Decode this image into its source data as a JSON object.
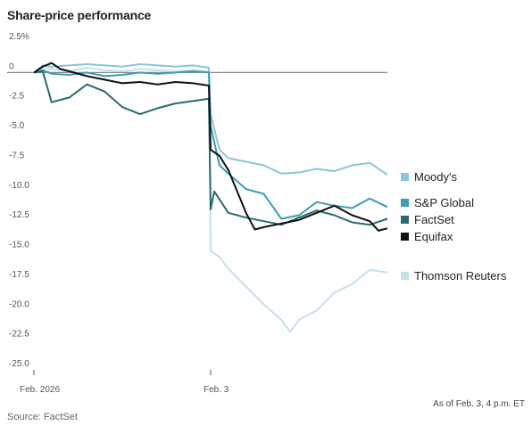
{
  "header": {
    "title": "Share-price performance"
  },
  "footer": {
    "note": "As of Feb. 3, 4 p.m. ET",
    "source": "Source: FactSet"
  },
  "chart_data": {
    "type": "line",
    "title": "Share-price performance",
    "xlabel": "",
    "ylabel": "",
    "ylim": [
      -25,
      2.5
    ],
    "y_ticks": [
      2.5,
      0,
      -2.5,
      -5,
      -7.5,
      -10,
      -12.5,
      -15,
      -17.5,
      -20,
      -22.5,
      -25
    ],
    "y_tick_labels": [
      "2.5%",
      "0",
      "-2.5",
      "-5.0",
      "-7.5",
      "-10.0",
      "-12.5",
      "-15.0",
      "-17.5",
      "-20.0",
      "-22.5",
      "-25.0"
    ],
    "x_ticks": [
      {
        "label": "Feb. 2026",
        "x": 0
      },
      {
        "label": "Feb. 3",
        "x": 1
      }
    ],
    "xlim": [
      0,
      2
    ],
    "grid": false,
    "zero_line": true,
    "legend_position": "right",
    "series": [
      {
        "name": "Moody's",
        "color": "#8ec5d6",
        "x": [
          0,
          0.05,
          0.1,
          0.2,
          0.3,
          0.4,
          0.5,
          0.6,
          0.7,
          0.8,
          0.9,
          0.99,
          1.0,
          1.05,
          1.1,
          1.2,
          1.3,
          1.4,
          1.5,
          1.6,
          1.7,
          1.8,
          1.9,
          2.0
        ],
        "values": [
          0,
          0.6,
          0.5,
          0.6,
          0.7,
          0.6,
          0.5,
          0.7,
          0.6,
          0.5,
          0.6,
          0.4,
          -3.5,
          -6.5,
          -7.2,
          -7.5,
          -7.8,
          -8.5,
          -8.4,
          -8.1,
          -8.3,
          -7.8,
          -7.6,
          -8.6
        ]
      },
      {
        "name": "S&P Global",
        "color": "#3e9bb4",
        "x": [
          0,
          0.05,
          0.1,
          0.2,
          0.3,
          0.4,
          0.5,
          0.6,
          0.7,
          0.8,
          0.9,
          0.99,
          1.0,
          1.05,
          1.1,
          1.2,
          1.3,
          1.4,
          1.5,
          1.6,
          1.7,
          1.8,
          1.9,
          2.0
        ],
        "values": [
          0,
          0.2,
          -0.1,
          -0.2,
          0,
          -0.3,
          -0.2,
          0,
          -0.1,
          0,
          0.1,
          0,
          -4.5,
          -7.8,
          -8.5,
          -9.8,
          -10.2,
          -12.3,
          -12.0,
          -10.9,
          -11.2,
          -11.4,
          -10.6,
          -11.3
        ]
      },
      {
        "name": "FactSet",
        "color": "#2a6a6f",
        "x": [
          0,
          0.05,
          0.1,
          0.2,
          0.3,
          0.4,
          0.5,
          0.6,
          0.7,
          0.8,
          0.9,
          0.99,
          1.0,
          1.02,
          1.1,
          1.2,
          1.3,
          1.4,
          1.5,
          1.6,
          1.7,
          1.8,
          1.9,
          2.0
        ],
        "values": [
          0,
          0.1,
          -2.5,
          -2.1,
          -1.0,
          -1.6,
          -2.9,
          -3.5,
          -3.0,
          -2.6,
          -2.4,
          -2.2,
          -11.5,
          -10.0,
          -11.8,
          -12.2,
          -12.5,
          -12.8,
          -12.2,
          -11.6,
          -12.0,
          -12.6,
          -12.8,
          -12.3
        ]
      },
      {
        "name": "Equifax",
        "color": "#111111",
        "x": [
          0,
          0.05,
          0.1,
          0.15,
          0.2,
          0.3,
          0.4,
          0.5,
          0.6,
          0.7,
          0.8,
          0.9,
          0.99,
          1.0,
          1.05,
          1.1,
          1.2,
          1.25,
          1.3,
          1.4,
          1.5,
          1.6,
          1.7,
          1.8,
          1.9,
          1.95,
          2.0
        ],
        "values": [
          0,
          0.5,
          0.8,
          0.3,
          0.1,
          -0.3,
          -0.6,
          -0.9,
          -0.8,
          -1.0,
          -0.8,
          -0.9,
          -1.1,
          -6.5,
          -7.0,
          -8.2,
          -11.8,
          -13.2,
          -13.0,
          -12.7,
          -12.4,
          -11.8,
          -11.2,
          -12.0,
          -12.5,
          -13.3,
          -13.1
        ]
      },
      {
        "name": "Thomson Reuters",
        "color": "#c6e0ea",
        "x": [
          0,
          0.05,
          0.1,
          0.2,
          0.3,
          0.4,
          0.5,
          0.6,
          0.7,
          0.8,
          0.9,
          0.99,
          1.0,
          1.05,
          1.1,
          1.2,
          1.3,
          1.4,
          1.45,
          1.5,
          1.6,
          1.7,
          1.8,
          1.9,
          2.0
        ],
        "values": [
          0,
          0.4,
          0.3,
          0.1,
          0.4,
          0.2,
          0.1,
          0.3,
          0.2,
          0.1,
          0.2,
          0.1,
          -15.0,
          -15.5,
          -16.5,
          -18.0,
          -19.5,
          -20.8,
          -21.8,
          -20.8,
          -20.0,
          -18.5,
          -17.8,
          -16.6,
          -16.8
        ]
      }
    ]
  }
}
